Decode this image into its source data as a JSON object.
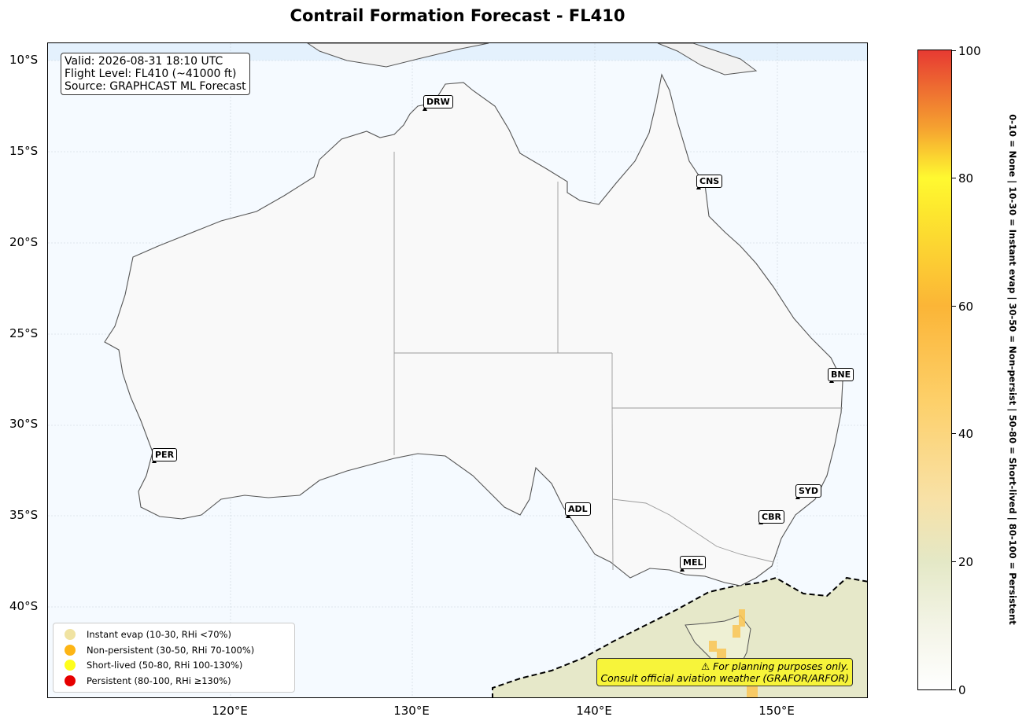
{
  "title": "Contrail Formation Forecast - FL410",
  "info": {
    "valid": "Valid: 2026-08-31 18:10 UTC",
    "flight_level": "Flight Level: FL410 (~41000 ft)",
    "source": "Source: GRAPHCAST ML Forecast"
  },
  "axes": {
    "y_ticks": [
      "10°S",
      "15°S",
      "20°S",
      "25°S",
      "30°S",
      "35°S",
      "40°S"
    ],
    "x_ticks": [
      "120°E",
      "130°E",
      "140°E",
      "150°E"
    ]
  },
  "cities": [
    {
      "code": "DRW"
    },
    {
      "code": "CNS"
    },
    {
      "code": "BNE"
    },
    {
      "code": "PER"
    },
    {
      "code": "SYD"
    },
    {
      "code": "ADL"
    },
    {
      "code": "CBR"
    },
    {
      "code": "MEL"
    }
  ],
  "legend": [
    {
      "label": "Instant evap (10-30, RHi <70%)",
      "color": "#f0e3a2"
    },
    {
      "label": "Non-persistent (30-50, RHi 70-100%)",
      "color": "#fdb515"
    },
    {
      "label": "Short-lived (50-80, RHi 100-130%)",
      "color": "#fefe1c"
    },
    {
      "label": "Persistent (80-100, RHi ≥130%)",
      "color": "#e60000"
    }
  ],
  "warning": {
    "line1": "⚠ For planning purposes only.",
    "line2": "Consult official aviation weather (GRAFOR/ARFOR)"
  },
  "colorbar": {
    "ticks": [
      "0",
      "20",
      "40",
      "60",
      "80",
      "100"
    ],
    "label": "0-10 = None  |  10-30 = Instant evap  |  30-50 = Non-persist  |  50-80 = Short-lived  |  80-100 = Persistent"
  }
}
